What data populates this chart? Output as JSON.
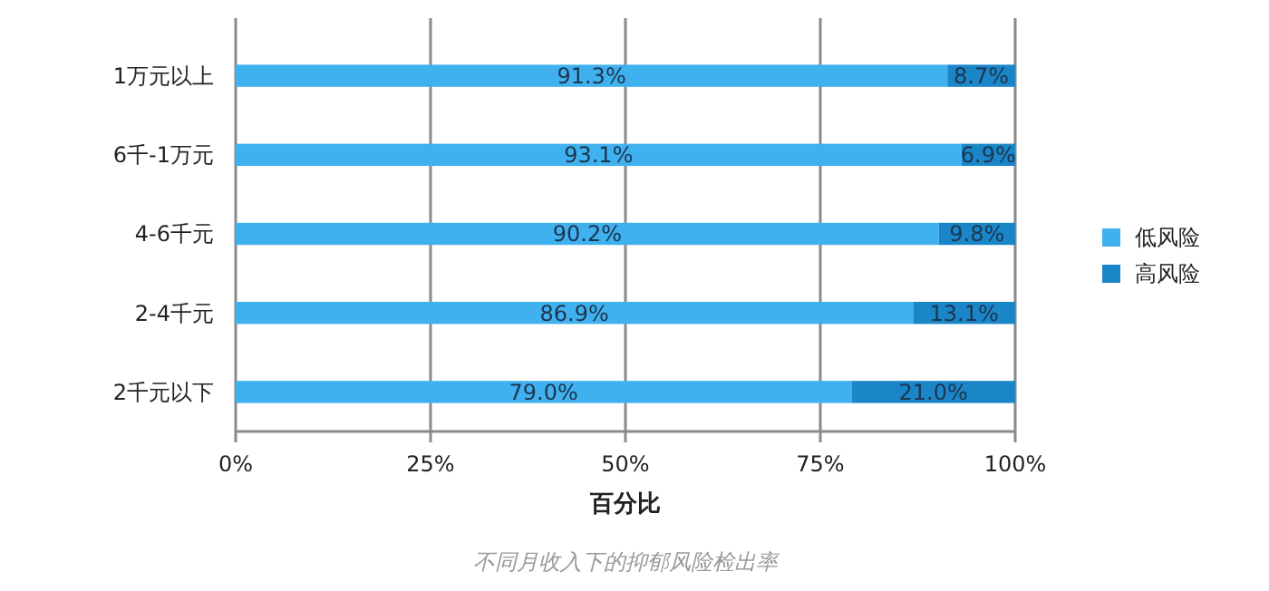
{
  "chart_data": {
    "type": "bar",
    "orientation": "horizontal",
    "stacked": true,
    "categories": [
      "1万元以上",
      "6千-1万元",
      "4-6千元",
      "2-4千元",
      "2千元以下"
    ],
    "series": [
      {
        "name": "低风险",
        "color": "#3fb1ee",
        "values": [
          91.3,
          93.1,
          90.2,
          86.9,
          79.0
        ],
        "value_labels": [
          "91.3%",
          "93.1%",
          "90.2%",
          "86.9%",
          "79.0%"
        ]
      },
      {
        "name": "高风险",
        "color": "#1a86c8",
        "values": [
          8.7,
          6.9,
          9.8,
          13.1,
          21.0
        ],
        "value_labels": [
          "8.7%",
          "6.9%",
          "9.8%",
          "13.1%",
          "21.0%"
        ]
      }
    ],
    "xlim": [
      0,
      100
    ],
    "xticks": [
      {
        "value": 0,
        "label": "0%"
      },
      {
        "value": 25,
        "label": "25%"
      },
      {
        "value": 50,
        "label": "50%"
      },
      {
        "value": 75,
        "label": "75%"
      },
      {
        "value": 100,
        "label": "100%"
      }
    ],
    "xlabel": "百分比",
    "grid": "x",
    "legend": "right",
    "annotations": [
      "不同月收入下的抑郁风险检出率"
    ]
  }
}
